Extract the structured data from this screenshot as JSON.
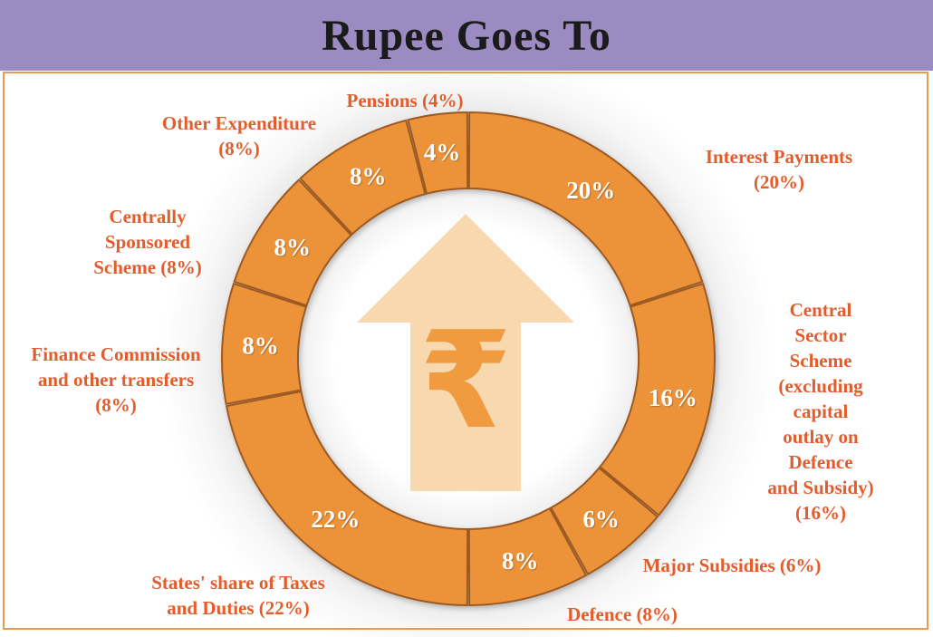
{
  "header": {
    "title": "Rupee Goes To"
  },
  "colors": {
    "header_bg": "#9C8BC3",
    "title_text": "#1b1b1b",
    "frame_border": "#E89A52",
    "segment_fill": "#EC9239",
    "segment_stroke": "#9C5A24",
    "outer_label_text": "#E25C2C",
    "pct_label_text": "#FFFFFF",
    "arrow_fill": "#F8D8AE",
    "rupee_symbol": "#F09B40"
  },
  "center_icon": {
    "name": "rupee-up-arrow",
    "symbol": "₹"
  },
  "chart_data": {
    "type": "pie",
    "subtype": "donut",
    "title": "Rupee Goes To",
    "units": "percent",
    "start_angle_deg": 0,
    "direction": "clockwise",
    "total": 100,
    "segments": [
      {
        "name": "Interest Payments",
        "value": 20,
        "pct_label": "20%",
        "outer_label": "Interest Payments (20%)"
      },
      {
        "name": "Central Sector Scheme (excluding capital outlay on Defence and Subsidy)",
        "value": 16,
        "pct_label": "16%",
        "outer_label": "Central Sector\nScheme\n(excluding capital\noutlay on Defence\nand Subsidy)\n(16%)"
      },
      {
        "name": "Major Subsidies",
        "value": 6,
        "pct_label": "6%",
        "outer_label": "Major Subsidies (6%)"
      },
      {
        "name": "Defence",
        "value": 8,
        "pct_label": "8%",
        "outer_label": "Defence (8%)"
      },
      {
        "name": "States' share of Taxes and Duties",
        "value": 22,
        "pct_label": "22%",
        "outer_label": "States' share of Taxes\nand Duties (22%)"
      },
      {
        "name": "Finance Commission and other transfers",
        "value": 8,
        "pct_label": "8%",
        "outer_label": "Finance Commission\nand other transfers\n(8%)"
      },
      {
        "name": "Centrally Sponsored Scheme",
        "value": 8,
        "pct_label": "8%",
        "outer_label": "Centrally\nSponsored\nScheme (8%)"
      },
      {
        "name": "Other Expenditure",
        "value": 8,
        "pct_label": "8%",
        "outer_label": "Other Expenditure\n(8%)"
      },
      {
        "name": "Pensions",
        "value": 4,
        "pct_label": "4%",
        "outer_label": "Pensions (4%)"
      }
    ]
  }
}
